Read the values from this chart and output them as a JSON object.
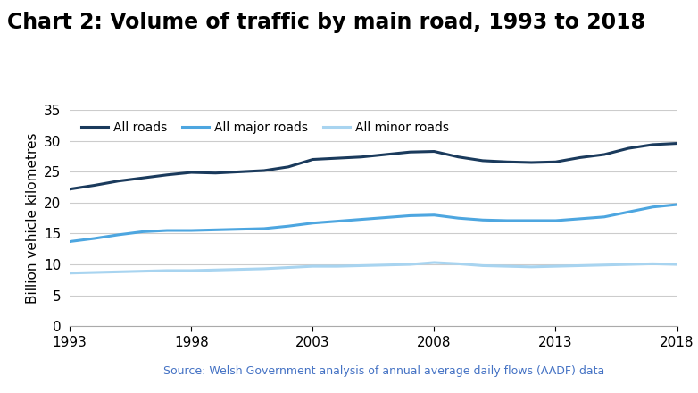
{
  "title": "Chart 2: Volume of traffic by main road, 1993 to 2018",
  "ylabel": "Billion vehicle kilometres",
  "source": "Source: Welsh Government analysis of annual average daily flows (AADF) data",
  "ylim": [
    0,
    35
  ],
  "yticks": [
    0,
    5,
    10,
    15,
    20,
    25,
    30,
    35
  ],
  "xticks": [
    1993,
    1998,
    2003,
    2008,
    2013,
    2018
  ],
  "years": [
    1993,
    1994,
    1995,
    1996,
    1997,
    1998,
    1999,
    2000,
    2001,
    2002,
    2003,
    2004,
    2005,
    2006,
    2007,
    2008,
    2009,
    2010,
    2011,
    2012,
    2013,
    2014,
    2015,
    2016,
    2017,
    2018
  ],
  "all_roads": [
    22.2,
    22.8,
    23.5,
    24.0,
    24.5,
    24.9,
    24.8,
    25.0,
    25.2,
    25.8,
    27.0,
    27.2,
    27.4,
    27.8,
    28.2,
    28.3,
    27.4,
    26.8,
    26.6,
    26.5,
    26.6,
    27.3,
    27.8,
    28.8,
    29.4,
    29.6
  ],
  "all_major_roads": [
    13.7,
    14.2,
    14.8,
    15.3,
    15.5,
    15.5,
    15.6,
    15.7,
    15.8,
    16.2,
    16.7,
    17.0,
    17.3,
    17.6,
    17.9,
    18.0,
    17.5,
    17.2,
    17.1,
    17.1,
    17.1,
    17.4,
    17.7,
    18.5,
    19.3,
    19.7
  ],
  "all_minor_roads": [
    8.6,
    8.7,
    8.8,
    8.9,
    9.0,
    9.0,
    9.1,
    9.2,
    9.3,
    9.5,
    9.7,
    9.7,
    9.8,
    9.9,
    10.0,
    10.3,
    10.1,
    9.8,
    9.7,
    9.6,
    9.7,
    9.8,
    9.9,
    10.0,
    10.1,
    10.0
  ],
  "color_all_roads": "#1a3a5c",
  "color_major_roads": "#4da6e0",
  "color_minor_roads": "#a8d4f0",
  "linewidth": 2.2,
  "bg_color": "#ffffff",
  "title_fontsize": 17,
  "axis_fontsize": 11,
  "legend_fontsize": 10,
  "source_fontsize": 9,
  "source_color": "#4472c4"
}
